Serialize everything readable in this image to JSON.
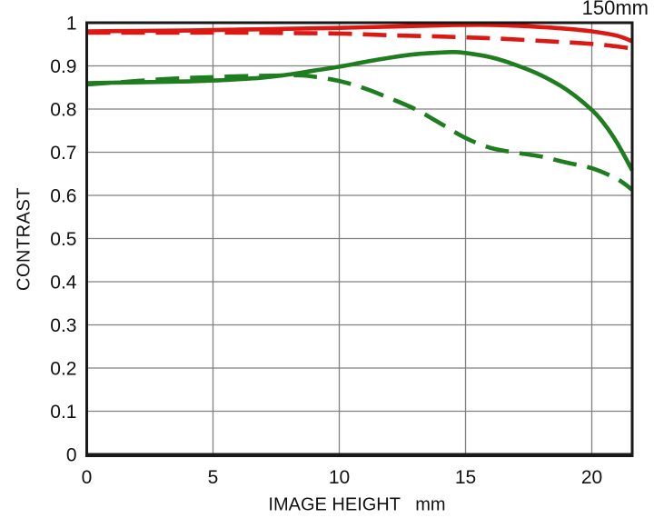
{
  "chart_data": {
    "type": "line",
    "title": "150mm",
    "xlabel": "IMAGE HEIGHT   mm",
    "ylabel": "CONTRAST",
    "xlim": [
      0,
      21.6
    ],
    "ylim": [
      0,
      1
    ],
    "x_ticks": [
      0,
      5,
      10,
      15,
      20
    ],
    "x_tick_labels": [
      "0",
      "5",
      "10",
      "15",
      "20"
    ],
    "y_ticks": [
      0,
      0.1,
      0.2,
      0.3,
      0.4,
      0.5,
      0.6,
      0.7,
      0.8,
      0.9,
      1
    ],
    "y_tick_labels": [
      "0",
      "0.1",
      "0.2",
      "0.3",
      "0.4",
      "0.5",
      "0.6",
      "0.7",
      "0.8",
      "0.9",
      "1"
    ],
    "grid": true,
    "legend": "none",
    "colors": {
      "red": "#dc1812",
      "green": "#1e7d1e",
      "grid": "#808080",
      "frame": "#1a1a1a"
    },
    "series": [
      {
        "name": "red-solid",
        "color": "#dc1812",
        "dash": "solid",
        "x": [
          0,
          2,
          4,
          6,
          8,
          10,
          12,
          14,
          15,
          16,
          17,
          18,
          19,
          20,
          21,
          21.6
        ],
        "y": [
          0.98,
          0.981,
          0.982,
          0.984,
          0.986,
          0.988,
          0.991,
          0.994,
          0.995,
          0.995,
          0.993,
          0.99,
          0.986,
          0.98,
          0.97,
          0.957
        ]
      },
      {
        "name": "red-dashed",
        "color": "#dc1812",
        "dash": "dashed",
        "x": [
          0,
          2,
          4,
          6,
          8,
          10,
          12,
          14,
          15,
          16,
          18,
          20,
          21,
          21.6
        ],
        "y": [
          0.977,
          0.977,
          0.977,
          0.977,
          0.976,
          0.975,
          0.971,
          0.968,
          0.966,
          0.964,
          0.958,
          0.951,
          0.945,
          0.94
        ]
      },
      {
        "name": "green-solid",
        "color": "#1e7d1e",
        "dash": "solid",
        "x": [
          0,
          1,
          2,
          3,
          4,
          5,
          6,
          7,
          8,
          9,
          10,
          11,
          12,
          13,
          14,
          14.5,
          15,
          16,
          17,
          18,
          19,
          20,
          20.5,
          21,
          21.6
        ],
        "y": [
          0.86,
          0.861,
          0.862,
          0.863,
          0.864,
          0.866,
          0.869,
          0.873,
          0.88,
          0.889,
          0.898,
          0.909,
          0.919,
          0.927,
          0.931,
          0.932,
          0.93,
          0.92,
          0.902,
          0.878,
          0.845,
          0.798,
          0.765,
          0.722,
          0.658
        ]
      },
      {
        "name": "green-dashed",
        "color": "#1e7d1e",
        "dash": "dashed",
        "x": [
          0,
          1,
          2,
          3,
          4,
          5,
          6,
          7,
          8,
          8.5,
          9,
          10,
          11,
          12,
          13,
          14,
          15,
          16,
          17,
          18,
          19,
          20,
          21,
          21.6
        ],
        "y": [
          0.857,
          0.861,
          0.865,
          0.869,
          0.872,
          0.874,
          0.876,
          0.877,
          0.878,
          0.878,
          0.875,
          0.865,
          0.848,
          0.825,
          0.8,
          0.767,
          0.733,
          0.71,
          0.699,
          0.69,
          0.676,
          0.663,
          0.638,
          0.613
        ]
      }
    ]
  }
}
